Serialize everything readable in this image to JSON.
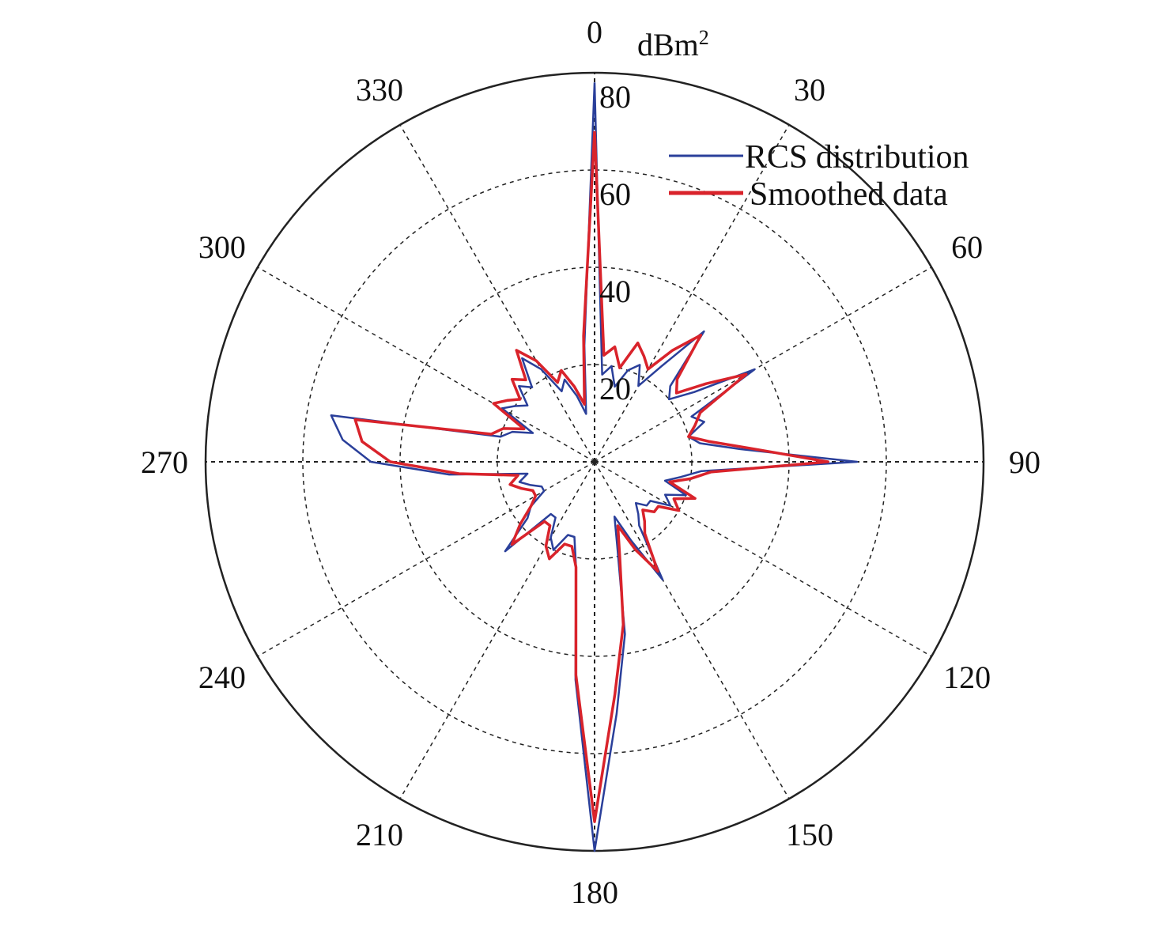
{
  "chart_data": {
    "type": "polar-line",
    "title": "",
    "unit": "dBm",
    "unit_superscript": "2",
    "angle_ticks": [
      "0",
      "30",
      "60",
      "90",
      "120",
      "150",
      "180",
      "210",
      "240",
      "270",
      "300",
      "330"
    ],
    "angle_tick_values": [
      0,
      30,
      60,
      90,
      120,
      150,
      180,
      210,
      240,
      270,
      300,
      330
    ],
    "radial_ticks": [
      "20",
      "40",
      "60",
      "80"
    ],
    "radial_tick_values": [
      20,
      40,
      60,
      80
    ],
    "radial_range": [
      0,
      80
    ],
    "grid": true,
    "legend": {
      "placement": "top-right",
      "entries": [
        "RCS distribution",
        "Smoothed data"
      ]
    },
    "colors": {
      "rcs": "#2a3f9a",
      "smoothed": "#d9232b",
      "grid": "#222222"
    },
    "series": [
      {
        "name": "RCS distribution",
        "angle_step_deg": 5,
        "values": [
          78,
          18,
          20,
          16,
          20,
          22,
          18,
          24,
          35,
          22,
          20,
          25,
          38,
          22,
          24,
          20,
          22,
          30,
          54,
          22,
          18,
          15,
          20,
          16,
          18,
          14,
          14,
          12,
          14,
          16,
          28,
          18,
          12,
          18,
          36,
          52,
          80,
          45,
          22,
          16,
          16,
          20,
          18,
          14,
          14,
          26,
          18,
          16,
          12,
          12,
          14,
          16,
          14,
          30,
          46,
          52,
          55,
          20,
          18,
          14,
          22,
          20,
          18,
          22,
          20,
          26,
          22,
          16,
          18,
          14,
          10,
          24
        ]
      },
      {
        "name": "Smoothed data",
        "angle_step_deg": 5,
        "values": [
          68,
          22,
          24,
          20,
          26,
          24,
          22,
          28,
          34,
          24,
          22,
          28,
          36,
          24,
          22,
          20,
          24,
          32,
          48,
          24,
          20,
          16,
          22,
          18,
          20,
          16,
          16,
          14,
          16,
          18,
          26,
          20,
          14,
          20,
          34,
          48,
          74,
          44,
          22,
          18,
          18,
          22,
          20,
          16,
          16,
          24,
          20,
          16,
          14,
          14,
          16,
          18,
          16,
          28,
          42,
          48,
          50,
          22,
          20,
          16,
          24,
          22,
          20,
          24,
          22,
          28,
          24,
          18,
          20,
          16,
          12,
          26
        ]
      }
    ]
  }
}
